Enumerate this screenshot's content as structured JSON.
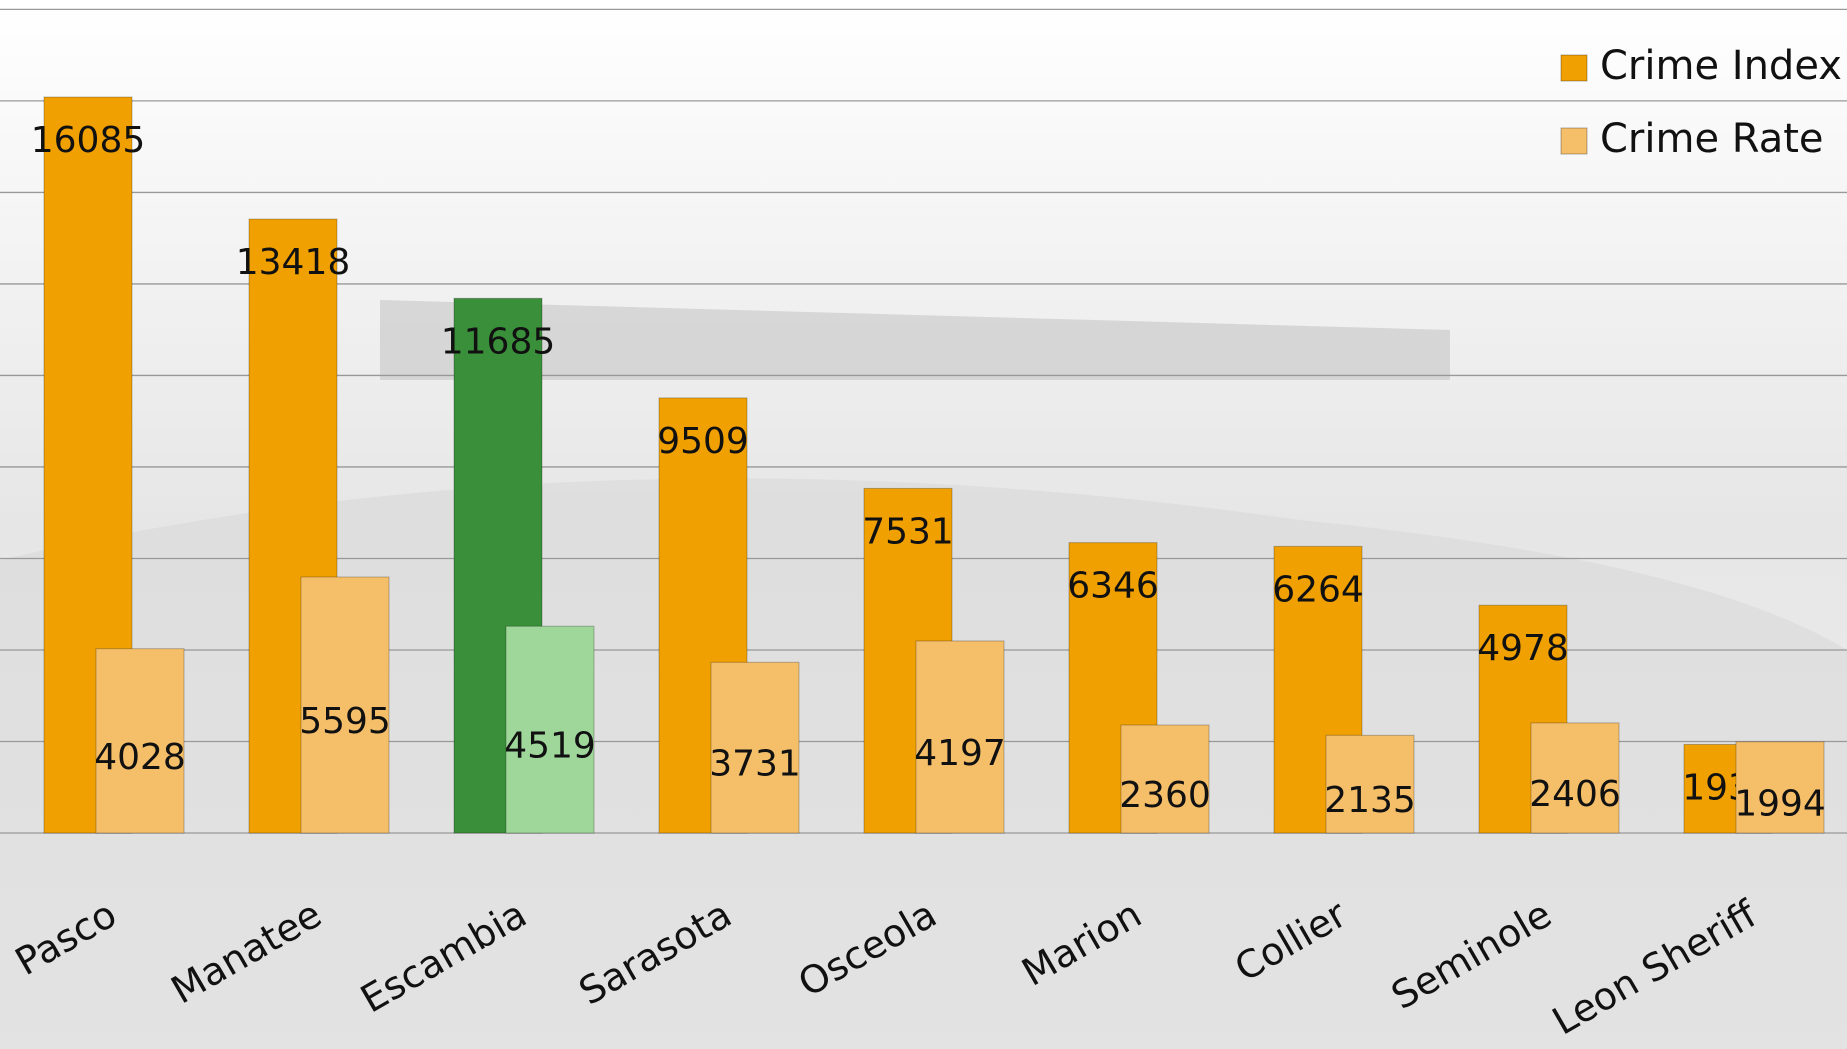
{
  "chart_data": {
    "type": "bar",
    "categories": [
      "Pasco",
      "Manatee",
      "Escambia",
      "Sarasota",
      "Osceola",
      "Marion",
      "Collier",
      "Seminole",
      "Leon Sheriff"
    ],
    "series": [
      {
        "name": "Crime Index",
        "color": "#f0a000",
        "colors": [
          "#f0a000",
          "#f0a000",
          "#3a8f3a",
          "#f0a000",
          "#f0a000",
          "#f0a000",
          "#f0a000",
          "#f0a000",
          "#f0a000"
        ],
        "values": [
          16085,
          13418,
          11685,
          9509,
          7531,
          6346,
          6264,
          4978,
          1935
        ]
      },
      {
        "name": "Crime Rate",
        "color": "#f5bf6a",
        "colors": [
          "#f5bf6a",
          "#f5bf6a",
          "#9fd79a",
          "#f5bf6a",
          "#f5bf6a",
          "#f5bf6a",
          "#f5bf6a",
          "#f5bf6a",
          "#f5bf6a"
        ],
        "values": [
          4028,
          5595,
          4519,
          3731,
          4197,
          2360,
          2135,
          2406,
          1994
        ]
      }
    ],
    "ylim": [
      0,
      18000
    ],
    "yticks": [
      0,
      2000,
      4000,
      6000,
      8000,
      10000,
      12000,
      14000,
      16000,
      18000
    ],
    "grid": true,
    "legend": "top-right"
  }
}
